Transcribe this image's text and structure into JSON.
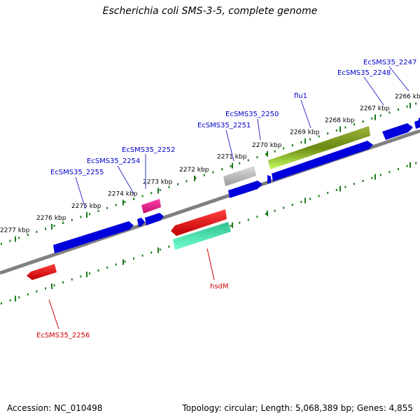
{
  "title": "Escherichia coli SMS-3-5, complete genome",
  "footer": {
    "accession": "Accession: NC_010498",
    "summary": "Topology: circular; Length: 5,068,389 bp; Genes: 4,855"
  },
  "colors": {
    "backbone": "#808080",
    "tick": "#1a7a1a",
    "label_forward": "#0000cc",
    "label_reverse": "#cc0000",
    "leader": "#3333cc"
  },
  "ticks_upper": [
    {
      "label": "2266 kbp"
    },
    {
      "label": "2267 kbp"
    },
    {
      "label": "2268 kbp"
    },
    {
      "label": "2269 kbp"
    },
    {
      "label": "2270 kbp"
    },
    {
      "label": "2271 kbp"
    },
    {
      "label": "2272 kbp"
    },
    {
      "label": "2273 kbp"
    },
    {
      "label": "2274 kbp"
    },
    {
      "label": "2275 kbp"
    },
    {
      "label": "2276 kbp"
    },
    {
      "label": "2277 kbp"
    }
  ],
  "genes_forward": [
    {
      "name": "EcSMS35_2247",
      "color": "#0000dd"
    },
    {
      "name": "EcSMS35_2248",
      "color": "#0000dd"
    },
    {
      "name": "flu1",
      "color": "#7fbf3f"
    },
    {
      "name": "EcSMS35_2250",
      "color": "#0000dd"
    },
    {
      "name": "EcSMS35_2251",
      "color": "#aaaaaa"
    },
    {
      "name": "EcSMS35_2252",
      "color": "#e0278a"
    },
    {
      "name": "EcSMS35_2254",
      "color": "#0000dd"
    },
    {
      "name": "EcSMS35_2255",
      "color": "#0000dd"
    }
  ],
  "genes_reverse": [
    {
      "name": "hsdM",
      "color": "#20d8a0"
    },
    {
      "name": "EcSMS35_2256",
      "color": "#dd0000"
    }
  ]
}
